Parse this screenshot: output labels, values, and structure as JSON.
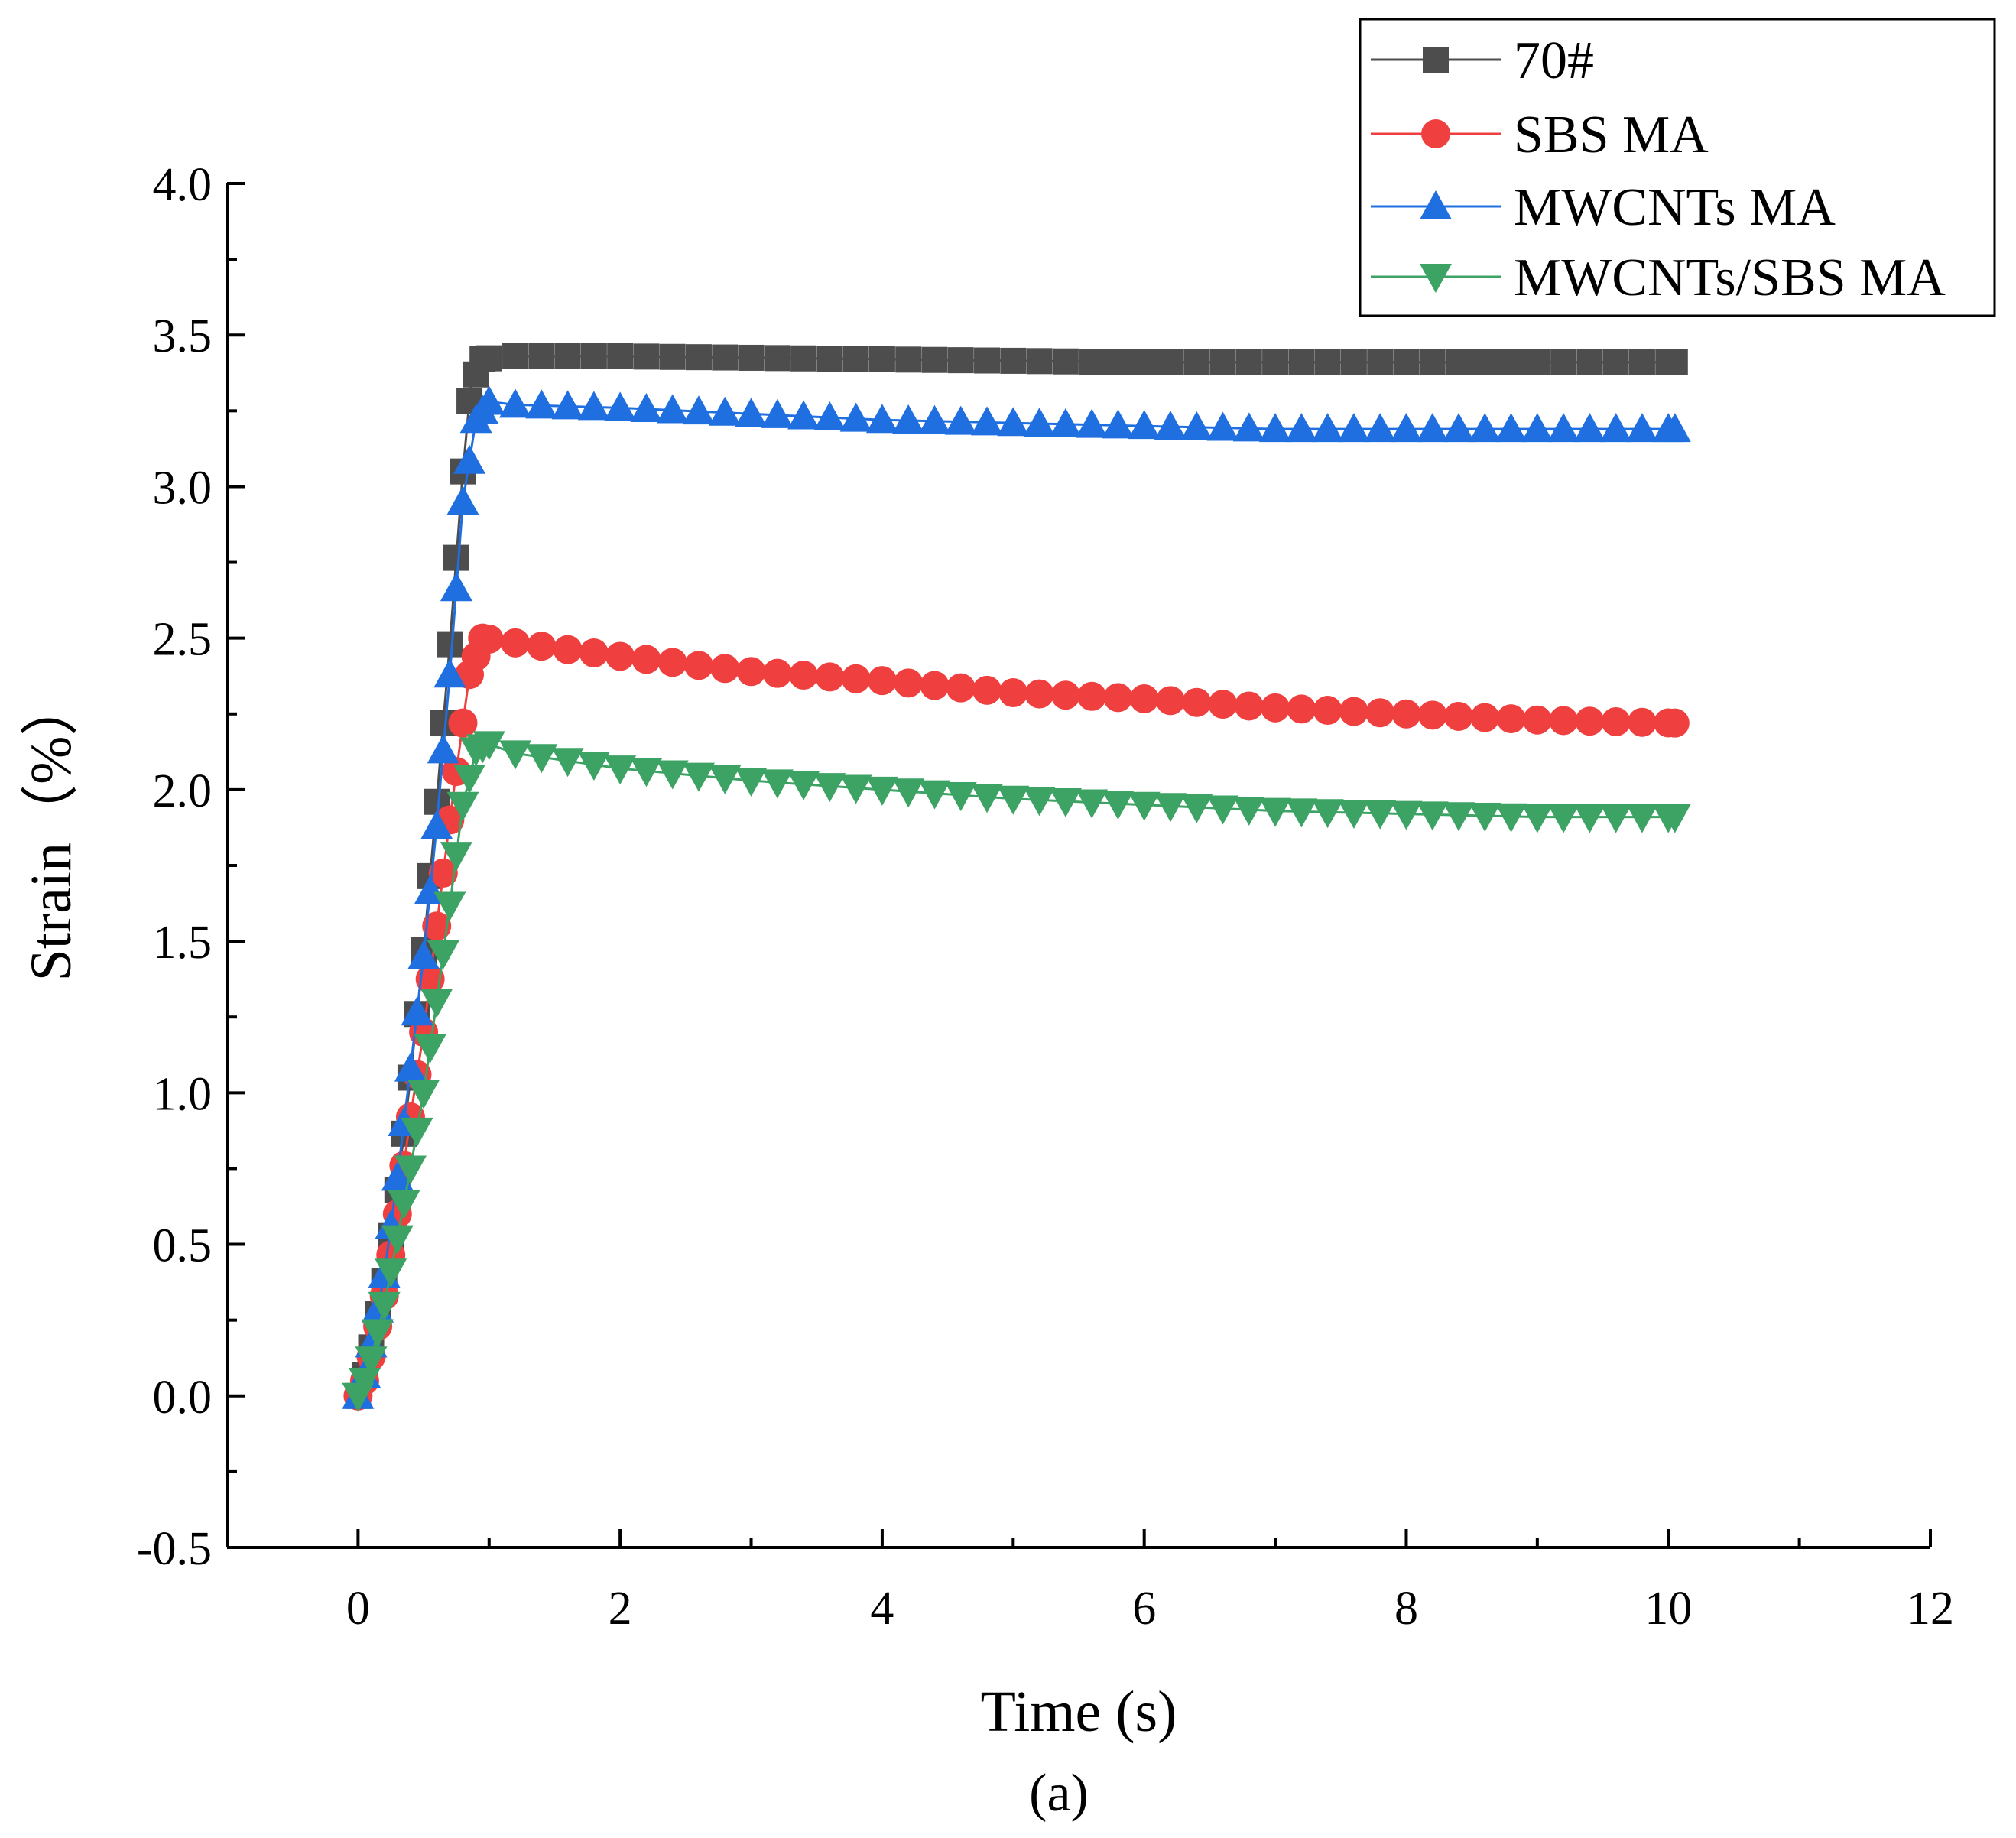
{
  "chart_data": {
    "type": "line",
    "title": "",
    "subcaption": "(a)",
    "xlabel": "Time (s)",
    "ylabel": "Strain（%）",
    "xlim": [
      -1,
      12
    ],
    "ylim": [
      -0.5,
      4.0
    ],
    "xticks": [
      0,
      2,
      4,
      6,
      8,
      10,
      12
    ],
    "xtick_labels": [
      "0",
      "2",
      "4",
      "6",
      "8",
      "10",
      "12"
    ],
    "yticks": [
      -0.5,
      0.0,
      0.5,
      1.0,
      1.5,
      2.0,
      2.5,
      3.0,
      3.5,
      4.0
    ],
    "ytick_labels": [
      "-0.5",
      "0.0",
      "0.5",
      "1.0",
      "1.5",
      "2.0",
      "2.5",
      "3.0",
      "3.5",
      "4.0"
    ],
    "grid": false,
    "legend_position": "top-right",
    "series": [
      {
        "name": "70#",
        "color": "#4d4d4d",
        "marker": "square",
        "points": [
          [
            0,
            0
          ],
          [
            0.05,
            0.07
          ],
          [
            0.1,
            0.16
          ],
          [
            0.2,
            0.38
          ],
          [
            0.3,
            0.68
          ],
          [
            0.4,
            1.05
          ],
          [
            0.5,
            1.47
          ],
          [
            0.6,
            1.96
          ],
          [
            0.7,
            2.48
          ],
          [
            0.8,
            3.05
          ],
          [
            0.86,
            3.33
          ],
          [
            0.95,
            3.42
          ],
          [
            1.1,
            3.43
          ],
          [
            2,
            3.43
          ],
          [
            4,
            3.42
          ],
          [
            6,
            3.41
          ],
          [
            8,
            3.41
          ],
          [
            10.05,
            3.41
          ]
        ]
      },
      {
        "name": "SBS MA",
        "color": "#ef3f3f",
        "marker": "circle",
        "points": [
          [
            0,
            0
          ],
          [
            0.05,
            0.05
          ],
          [
            0.1,
            0.13
          ],
          [
            0.2,
            0.33
          ],
          [
            0.3,
            0.6
          ],
          [
            0.4,
            0.92
          ],
          [
            0.5,
            1.2
          ],
          [
            0.6,
            1.55
          ],
          [
            0.7,
            1.9
          ],
          [
            0.8,
            2.22
          ],
          [
            0.85,
            2.38
          ],
          [
            0.95,
            2.5
          ],
          [
            1.1,
            2.49
          ],
          [
            2,
            2.44
          ],
          [
            3,
            2.39
          ],
          [
            4,
            2.36
          ],
          [
            5,
            2.32
          ],
          [
            6,
            2.3
          ],
          [
            7,
            2.27
          ],
          [
            8,
            2.25
          ],
          [
            9,
            2.23
          ],
          [
            10.05,
            2.22
          ]
        ]
      },
      {
        "name": "MWCNTs MA",
        "color": "#1f6fe0",
        "marker": "triangle-up",
        "points": [
          [
            0,
            0
          ],
          [
            0.05,
            0.07
          ],
          [
            0.1,
            0.17
          ],
          [
            0.2,
            0.4
          ],
          [
            0.3,
            0.72
          ],
          [
            0.4,
            1.08
          ],
          [
            0.5,
            1.45
          ],
          [
            0.6,
            1.88
          ],
          [
            0.7,
            2.38
          ],
          [
            0.8,
            2.95
          ],
          [
            0.9,
            3.22
          ],
          [
            1.0,
            3.28
          ],
          [
            1.2,
            3.27
          ],
          [
            2,
            3.26
          ],
          [
            3,
            3.24
          ],
          [
            4,
            3.22
          ],
          [
            5,
            3.21
          ],
          [
            6,
            3.2
          ],
          [
            7,
            3.19
          ],
          [
            8,
            3.19
          ],
          [
            9,
            3.19
          ],
          [
            10.05,
            3.19
          ]
        ]
      },
      {
        "name": "MWCNTs/SBS MA",
        "color": "#3ca364",
        "marker": "triangle-down",
        "points": [
          [
            0,
            0
          ],
          [
            0.05,
            0.05
          ],
          [
            0.1,
            0.12
          ],
          [
            0.2,
            0.3
          ],
          [
            0.3,
            0.52
          ],
          [
            0.4,
            0.75
          ],
          [
            0.5,
            1.0
          ],
          [
            0.6,
            1.3
          ],
          [
            0.7,
            1.62
          ],
          [
            0.8,
            1.95
          ],
          [
            0.9,
            2.13
          ],
          [
            1.0,
            2.15
          ],
          [
            1.2,
            2.12
          ],
          [
            2,
            2.07
          ],
          [
            3,
            2.03
          ],
          [
            4,
            2.0
          ],
          [
            5,
            1.97
          ],
          [
            6,
            1.95
          ],
          [
            7,
            1.93
          ],
          [
            8,
            1.92
          ],
          [
            9,
            1.91
          ],
          [
            10.05,
            1.91
          ]
        ]
      }
    ]
  }
}
